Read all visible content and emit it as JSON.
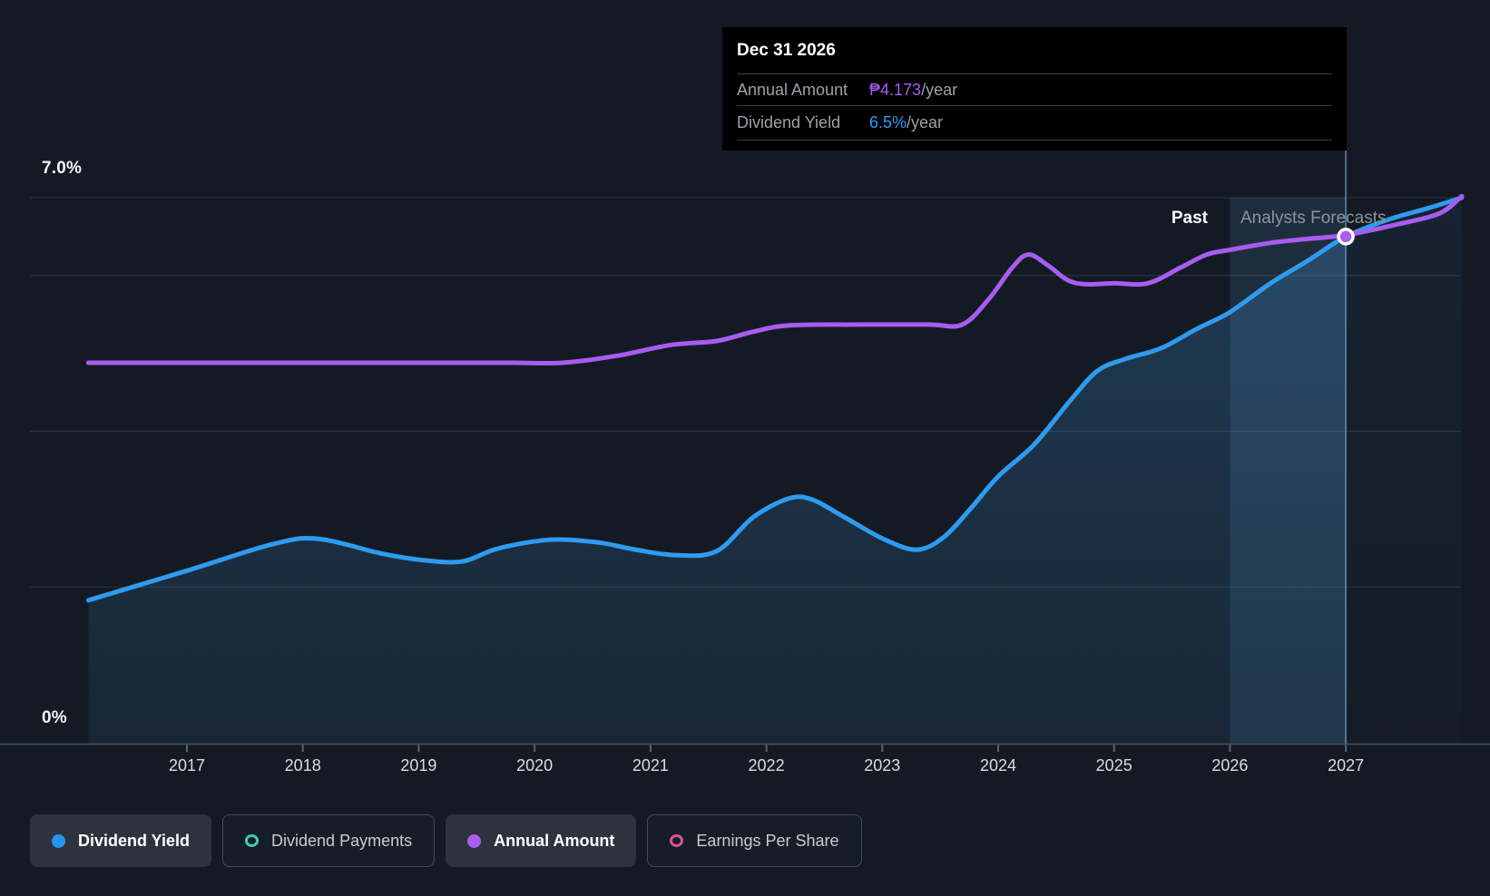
{
  "page": {
    "background": "#141A23"
  },
  "tooltip": {
    "date": "Dec 31 2026",
    "rows": [
      {
        "label": "Annual Amount",
        "value": "₱4.173",
        "suffix": "/year",
        "color_class": "purple"
      },
      {
        "label": "Dividend Yield",
        "value": "6.5%",
        "suffix": "/year",
        "color_class": "blue"
      }
    ]
  },
  "annotations": {
    "past": "Past",
    "forecast": "Analysts Forecasts"
  },
  "y_axis": {
    "top_label": "7.0%",
    "bottom_label": "0%"
  },
  "legend": {
    "items": [
      {
        "label": "Dividend Yield",
        "marker": "dot",
        "color": "#2496F0",
        "active": true,
        "name": "dividend-yield"
      },
      {
        "label": "Dividend Payments",
        "marker": "ring",
        "color": "#41C9B0",
        "active": false,
        "name": "dividend-payments"
      },
      {
        "label": "Annual Amount",
        "marker": "dot",
        "color": "#A85CF0",
        "active": true,
        "name": "annual-amount"
      },
      {
        "label": "Earnings Per Share",
        "marker": "ring",
        "color": "#DB5490",
        "active": false,
        "name": "earnings-per-share"
      }
    ]
  },
  "chart_data": {
    "type": "line",
    "title": "Dividend yield history and forecast",
    "xlim": [
      2016.15,
      2028.0
    ],
    "ylim": [
      0,
      7.0
    ],
    "x_ticks": [
      2017,
      2018,
      2019,
      2020,
      2021,
      2022,
      2023,
      2024,
      2025,
      2026,
      2027
    ],
    "gridlines_pct": [
      7,
      6,
      4,
      2
    ],
    "grid": true,
    "legend_position": "bottom",
    "forecast_start_year": 2026.0,
    "highlight_end_year": 2027.0,
    "marker_point": {
      "x": 2027.0,
      "y": 6.5,
      "series": "Annual Amount",
      "label": "₱4.173/year and 6.5%/year at Dec 31 2026"
    },
    "series": [
      {
        "name": "Dividend Yield",
        "unit": "% per year",
        "color": "#2E9BF0",
        "points": [
          [
            2016.15,
            1.83
          ],
          [
            2017.0,
            2.21
          ],
          [
            2017.74,
            2.55
          ],
          [
            2018.13,
            2.62
          ],
          [
            2018.68,
            2.43
          ],
          [
            2019.07,
            2.34
          ],
          [
            2019.38,
            2.33
          ],
          [
            2019.65,
            2.48
          ],
          [
            2019.93,
            2.57
          ],
          [
            2020.2,
            2.61
          ],
          [
            2020.56,
            2.57
          ],
          [
            2020.87,
            2.48
          ],
          [
            2021.22,
            2.41
          ],
          [
            2021.57,
            2.46
          ],
          [
            2021.89,
            2.9
          ],
          [
            2022.2,
            3.14
          ],
          [
            2022.4,
            3.12
          ],
          [
            2022.67,
            2.9
          ],
          [
            2023.02,
            2.61
          ],
          [
            2023.3,
            2.48
          ],
          [
            2023.53,
            2.64
          ],
          [
            2023.77,
            3.02
          ],
          [
            2024.0,
            3.42
          ],
          [
            2024.31,
            3.83
          ],
          [
            2024.63,
            4.41
          ],
          [
            2024.86,
            4.78
          ],
          [
            2025.1,
            4.93
          ],
          [
            2025.41,
            5.07
          ],
          [
            2025.72,
            5.32
          ],
          [
            2026.0,
            5.53
          ],
          [
            2026.35,
            5.9
          ],
          [
            2026.66,
            6.18
          ],
          [
            2027.0,
            6.5
          ],
          [
            2027.37,
            6.72
          ],
          [
            2027.72,
            6.87
          ],
          [
            2028.0,
            7.0
          ]
        ]
      },
      {
        "name": "Annual Amount",
        "unit": "₱ per year (plotted on overlay scale; ₱4.173/year at Dec 31 2026)",
        "color": "#A85CF0",
        "points": [
          [
            2016.15,
            4.88
          ],
          [
            2017.0,
            4.88
          ],
          [
            2018.0,
            4.88
          ],
          [
            2019.0,
            4.88
          ],
          [
            2019.8,
            4.88
          ],
          [
            2020.24,
            4.88
          ],
          [
            2020.71,
            4.97
          ],
          [
            2021.18,
            5.11
          ],
          [
            2021.57,
            5.16
          ],
          [
            2021.89,
            5.28
          ],
          [
            2022.2,
            5.36
          ],
          [
            2022.8,
            5.37
          ],
          [
            2023.4,
            5.37
          ],
          [
            2023.69,
            5.37
          ],
          [
            2023.92,
            5.7
          ],
          [
            2024.12,
            6.1
          ],
          [
            2024.26,
            6.27
          ],
          [
            2024.43,
            6.13
          ],
          [
            2024.59,
            5.95
          ],
          [
            2024.74,
            5.89
          ],
          [
            2025.0,
            5.9
          ],
          [
            2025.29,
            5.9
          ],
          [
            2025.57,
            6.1
          ],
          [
            2025.8,
            6.27
          ],
          [
            2026.0,
            6.33
          ],
          [
            2026.35,
            6.42
          ],
          [
            2026.66,
            6.47
          ],
          [
            2027.0,
            6.52
          ],
          [
            2027.45,
            6.66
          ],
          [
            2027.81,
            6.8
          ],
          [
            2028.0,
            7.02
          ]
        ]
      }
    ]
  }
}
